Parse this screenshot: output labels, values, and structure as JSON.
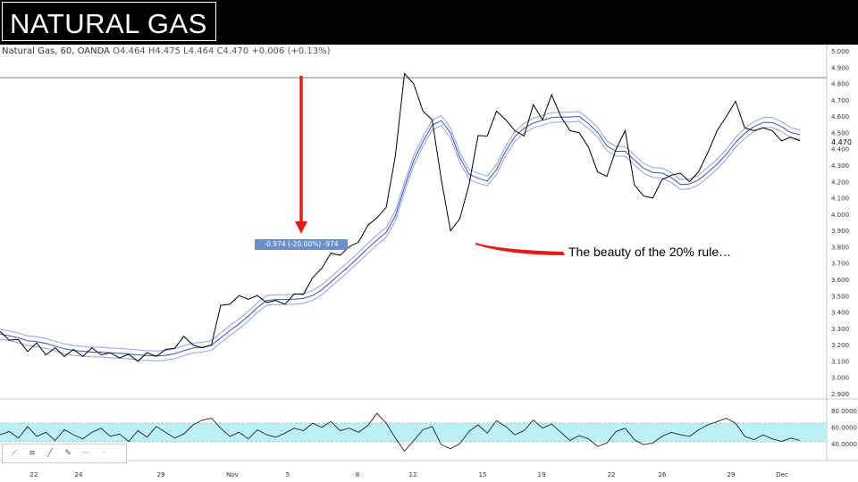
{
  "slide": {
    "title": "NATURAL GAS",
    "annotation": "The beauty of the 20% rule…"
  },
  "chart_header": {
    "symbol": "Natural Gas, 60, OANDA",
    "ohlc": "O4.464 H4.475 L4.464 C4.470 +0.006 (+0.13%)"
  },
  "measure_label": "-0.974 (-20.00%) -974",
  "last_price": "4.470",
  "colors": {
    "price": "#000000",
    "ma_band": "#3b4fbf",
    "ma_band_light": "#8fa3e0",
    "arrow": "#e21b1b",
    "rsi_band": "#bdf0f5",
    "measure_bg": "#6a8fc9"
  },
  "chart_data": {
    "type": "line",
    "title": "",
    "y_ticks": [
      "5.000",
      "4.900",
      "4.800",
      "4.700",
      "4.600",
      "4.500",
      "4.400",
      "4.300",
      "4.200",
      "4.100",
      "4.000",
      "3.900",
      "3.800",
      "3.700",
      "3.600",
      "3.500",
      "3.400",
      "3.300",
      "3.200",
      "3.100",
      "3.000",
      "2.900"
    ],
    "x_ticks": [
      "22",
      "24",
      "29",
      "Nov",
      "5",
      "8",
      "12",
      "15",
      "19",
      "22",
      "26",
      "29",
      "Dec"
    ],
    "ylim": [
      2.9,
      5.0
    ],
    "series": [
      {
        "values": [
          3.27,
          3.25,
          3.22,
          3.18,
          3.2,
          3.16,
          3.17,
          3.15,
          3.16,
          3.15,
          3.17,
          3.16,
          3.14,
          3.14,
          3.13,
          3.12,
          3.14,
          3.15,
          3.16,
          3.2,
          3.24,
          3.22,
          3.17,
          3.22,
          3.43,
          3.47,
          3.49,
          3.5,
          3.49,
          3.48,
          3.46,
          3.47,
          3.5,
          3.53,
          3.6,
          3.69,
          3.75,
          3.77,
          3.79,
          3.85,
          3.92,
          4.0,
          4.03,
          4.38,
          4.85,
          4.82,
          4.62,
          4.6,
          4.2,
          3.92,
          3.96,
          4.2,
          4.47,
          4.5,
          4.62,
          4.6,
          4.5,
          4.5,
          4.66,
          4.6,
          4.72,
          4.62,
          4.5,
          4.52,
          4.4,
          4.28,
          4.22,
          4.42,
          4.5,
          4.2,
          4.1,
          4.12,
          4.2,
          4.26,
          4.24,
          4.22,
          4.25,
          4.4,
          4.5,
          4.62,
          4.68,
          4.55,
          4.5,
          4.55,
          4.5,
          4.47,
          4.46,
          4.47
        ]
      }
    ],
    "rsi": {
      "levels": [
        "80.0000",
        "60.0000",
        "40.0000"
      ],
      "values": [
        52,
        56,
        48,
        62,
        50,
        55,
        45,
        58,
        52,
        47,
        55,
        60,
        50,
        53,
        44,
        57,
        49,
        62,
        55,
        48,
        53,
        64,
        70,
        72,
        60,
        50,
        55,
        47,
        58,
        52,
        49,
        54,
        60,
        57,
        66,
        61,
        68,
        57,
        60,
        55,
        63,
        78,
        66,
        48,
        32,
        45,
        58,
        62,
        40,
        35,
        41,
        56,
        64,
        54,
        69,
        62,
        52,
        57,
        70,
        60,
        65,
        55,
        45,
        51,
        47,
        38,
        42,
        56,
        60,
        46,
        40,
        42,
        50,
        55,
        52,
        50,
        58,
        64,
        68,
        72,
        66,
        50,
        46,
        52,
        47,
        44,
        48,
        45
      ]
    }
  }
}
